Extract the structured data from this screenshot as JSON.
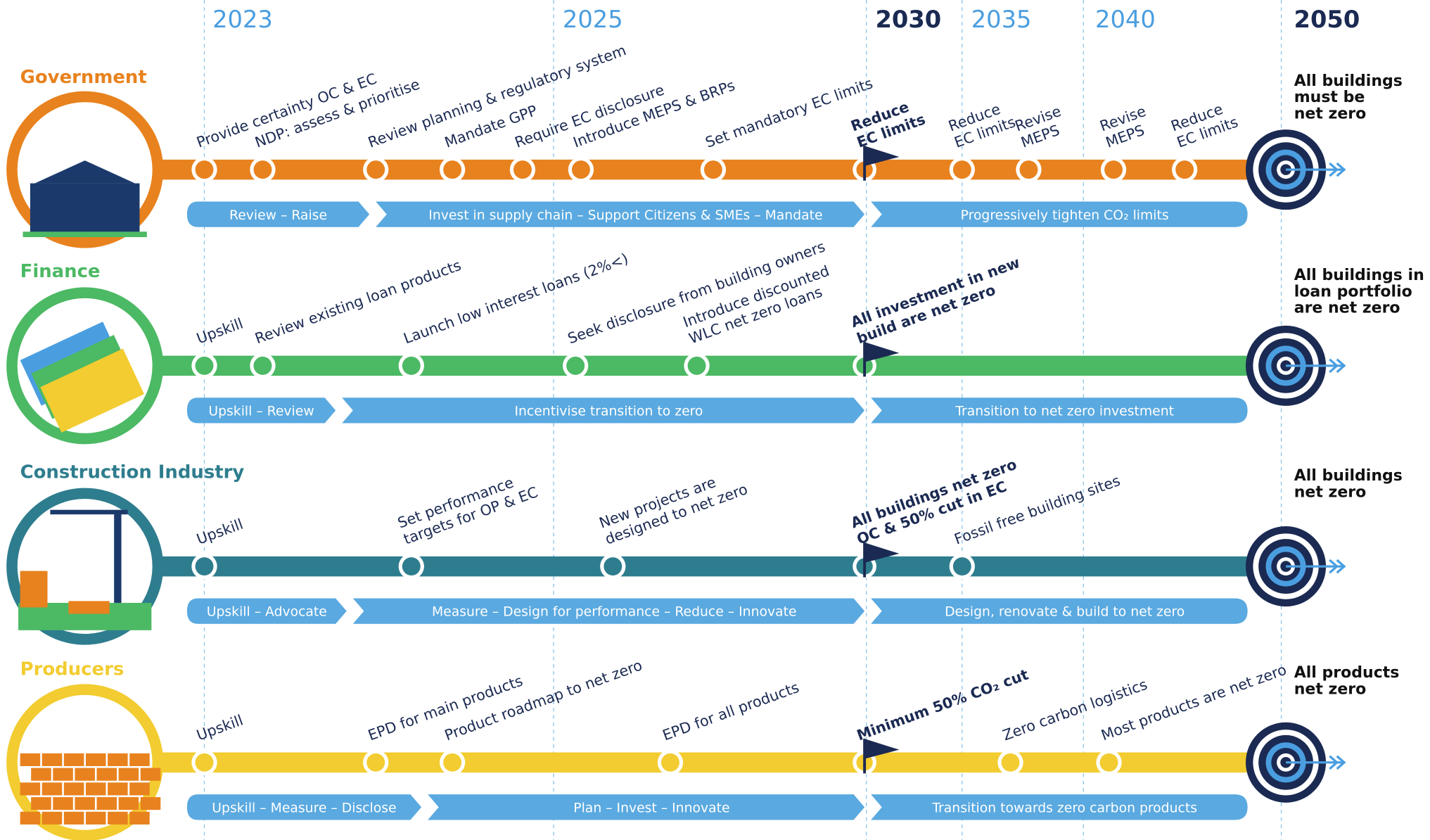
{
  "years": [
    "2023",
    "2025",
    "2030",
    "2035",
    "2040",
    "2050"
  ],
  "lanes": [
    {
      "title": "Government",
      "milestones": [
        {
          "lines": [
            "Provide certainty OC & EC"
          ]
        },
        {
          "lines": [
            "NDP: assess & prioritise"
          ]
        },
        {
          "lines": [
            "Review planning & regulatory system"
          ]
        },
        {
          "lines": [
            "Mandate GPP"
          ]
        },
        {
          "lines": [
            "Require EC disclosure"
          ]
        },
        {
          "lines": [
            "Introduce MEPS & BRPs"
          ]
        },
        {
          "lines": [
            "Set mandatory EC limits"
          ]
        },
        {
          "lines": [
            "Reduce",
            "EC limits"
          ]
        },
        {
          "lines": [
            "Reduce",
            "EC limits"
          ]
        },
        {
          "lines": [
            "Revise",
            "MEPS"
          ]
        },
        {
          "lines": [
            "Revise",
            "MEPS"
          ]
        },
        {
          "lines": [
            "Reduce",
            "EC limits"
          ]
        }
      ],
      "phases": [
        "Review – Raise",
        "Invest in supply chain – Support Citizens & SMEs – Mandate",
        "Progressively tighten CO₂ limits"
      ],
      "goal": [
        "All buildings",
        "must be",
        "net zero"
      ]
    },
    {
      "title": "Finance",
      "milestones": [
        {
          "lines": [
            "Upskill"
          ]
        },
        {
          "lines": [
            "Review existing loan products"
          ]
        },
        {
          "lines": [
            "Launch low interest loans (2%<)"
          ]
        },
        {
          "lines": [
            "Seek disclosure from building owners"
          ]
        },
        {
          "lines": [
            "Introduce discounted",
            "WLC net zero loans"
          ]
        },
        {
          "lines": [
            "All investment in new",
            "build are net zero"
          ]
        }
      ],
      "phases": [
        "Upskill – Review",
        "Incentivise transition to zero",
        "Transition to net zero investment"
      ],
      "goal": [
        "All buildings in",
        "loan portfolio",
        "are net zero"
      ]
    },
    {
      "title": "Construction Industry",
      "milestones": [
        {
          "lines": [
            "Upskill"
          ]
        },
        {
          "lines": [
            "Set performance",
            "targets for OP & EC"
          ]
        },
        {
          "lines": [
            "New projects are",
            "designed to net zero"
          ]
        },
        {
          "lines": [
            "All buildings net zero",
            "OC & 50% cut in EC"
          ]
        },
        {
          "lines": [
            "Fossil free building sites"
          ]
        }
      ],
      "phases": [
        "Upskill – Advocate",
        "Measure – Design for performance – Reduce – Innovate",
        "Design, renovate & build to net zero"
      ],
      "goal": [
        "All buildings",
        "net zero"
      ]
    },
    {
      "title": "Producers",
      "milestones": [
        {
          "lines": [
            "Upskill"
          ]
        },
        {
          "lines": [
            "EPD for main products"
          ]
        },
        {
          "lines": [
            "Product roadmap to net zero"
          ]
        },
        {
          "lines": [
            "EPD for all products"
          ]
        },
        {
          "lines": [
            "Minimum 50% CO₂ cut"
          ]
        },
        {
          "lines": [
            "Zero carbon logistics"
          ]
        },
        {
          "lines": [
            "Most products are net zero"
          ]
        }
      ],
      "phases": [
        "Upskill – Measure – Disclose",
        "Plan –  Invest – Innovate",
        "Transition towards zero carbon products"
      ],
      "goal": [
        "All products",
        "net zero"
      ]
    }
  ]
}
